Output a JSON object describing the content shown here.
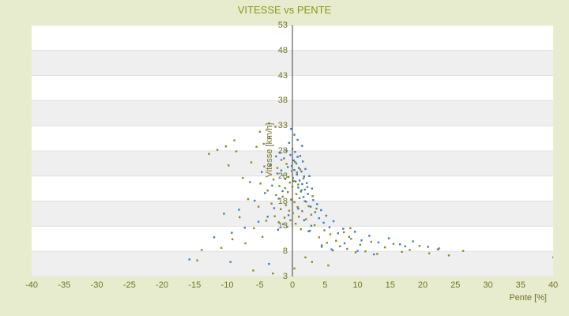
{
  "colors": {
    "background": "#e8ecce",
    "title": "#8c941c",
    "tick": "#72722a",
    "band": "#ffffff",
    "band_alt": "#efefef",
    "grid": "#e0e0e0",
    "axis": "#3f3f3f",
    "series_olive": "#8a8a28",
    "series_blue": "#3e7dc4"
  },
  "chart_data": {
    "type": "scatter",
    "title": "VITESSE vs PENTE",
    "xlabel": "Pente [%]",
    "ylabel": "Vitesse [km/h]",
    "xlim": [
      -40,
      40
    ],
    "ylim": [
      3,
      53
    ],
    "x_ticks": [
      -40,
      -35,
      -30,
      -25,
      -20,
      -15,
      -10,
      -5,
      0,
      5,
      10,
      15,
      20,
      25,
      30,
      35,
      40
    ],
    "y_ticks": [
      3,
      8,
      13,
      18,
      23,
      28,
      33,
      38,
      43,
      48,
      53
    ],
    "grid": "horizontal-bands",
    "legend": "none",
    "marker": "square",
    "marker_size": 2.4,
    "series": [
      {
        "name": "series-1",
        "color": "#8a8a28",
        "points": [
          [
            -3.8,
            20.1
          ],
          [
            -3.2,
            17.5
          ],
          [
            -2.9,
            22.3
          ],
          [
            -2.7,
            15.0
          ],
          [
            -2.5,
            19.2
          ],
          [
            -2.3,
            24.6
          ],
          [
            -2.1,
            13.8
          ],
          [
            -2.0,
            21.0
          ],
          [
            -1.8,
            16.4
          ],
          [
            -1.7,
            26.2
          ],
          [
            -1.5,
            18.9
          ],
          [
            -1.4,
            23.1
          ],
          [
            -1.2,
            14.7
          ],
          [
            -1.1,
            20.6
          ],
          [
            -1.0,
            17.2
          ],
          [
            -0.9,
            25.4
          ],
          [
            -0.8,
            12.9
          ],
          [
            -0.7,
            19.8
          ],
          [
            -0.6,
            22.8
          ],
          [
            -0.5,
            16.1
          ],
          [
            -0.4,
            21.7
          ],
          [
            -0.3,
            14.2
          ],
          [
            -0.2,
            18.3
          ],
          [
            -0.1,
            24.0
          ],
          [
            0.0,
            20.9
          ],
          [
            0.1,
            15.6
          ],
          [
            0.2,
            22.0
          ],
          [
            0.3,
            17.8
          ],
          [
            0.4,
            25.8
          ],
          [
            0.5,
            13.5
          ],
          [
            0.6,
            19.4
          ],
          [
            0.7,
            23.7
          ],
          [
            0.8,
            16.8
          ],
          [
            0.9,
            21.3
          ],
          [
            1.0,
            14.9
          ],
          [
            1.1,
            18.6
          ],
          [
            1.2,
            24.3
          ],
          [
            1.3,
            12.4
          ],
          [
            1.4,
            20.2
          ],
          [
            1.5,
            16.0
          ],
          [
            1.7,
            22.5
          ],
          [
            1.9,
            18.0
          ],
          [
            2.1,
            14.4
          ],
          [
            2.3,
            20.8
          ],
          [
            2.5,
            17.0
          ],
          [
            2.7,
            12.1
          ],
          [
            2.9,
            15.3
          ],
          [
            3.1,
            19.0
          ],
          [
            3.4,
            13.2
          ],
          [
            3.7,
            16.5
          ],
          [
            -14.6,
            6.2
          ],
          [
            -13.9,
            8.3
          ],
          [
            -12.8,
            27.4
          ],
          [
            -11.5,
            28.2
          ],
          [
            -10.9,
            8.7
          ],
          [
            -10.2,
            28.9
          ],
          [
            -9.8,
            25.1
          ],
          [
            -9.2,
            10.4
          ],
          [
            -8.9,
            30.1
          ],
          [
            -8.6,
            27.9
          ],
          [
            -8.1,
            14.8
          ],
          [
            -7.6,
            22.6
          ],
          [
            -7.2,
            9.6
          ],
          [
            -6.8,
            18.4
          ],
          [
            -6.3,
            25.7
          ],
          [
            -6.0,
            4.2
          ],
          [
            -5.9,
            12.6
          ],
          [
            -5.5,
            28.8
          ],
          [
            -5.2,
            16.9
          ],
          [
            -5.0,
            31.8
          ],
          [
            -4.9,
            21.5
          ],
          [
            -4.6,
            10.9
          ],
          [
            -4.4,
            29.4
          ],
          [
            -4.3,
            24.9
          ],
          [
            -4.0,
            14.1
          ],
          [
            -3.6,
            33.5
          ],
          [
            -3.5,
            30.6
          ],
          [
            -3.0,
            3.6
          ],
          [
            -2.6,
            32.8
          ],
          [
            4.1,
            10.8
          ],
          [
            4.5,
            8.9
          ],
          [
            4.9,
            12.2
          ],
          [
            5.3,
            9.7
          ],
          [
            5.8,
            11.4
          ],
          [
            6.2,
            8.2
          ],
          [
            6.7,
            10.1
          ],
          [
            7.3,
            9.0
          ],
          [
            7.9,
            11.8
          ],
          [
            8.4,
            8.5
          ],
          [
            8.9,
            12.6
          ],
          [
            9.0,
            10.5
          ],
          [
            9.7,
            7.8
          ],
          [
            10.4,
            9.3
          ],
          [
            11.2,
            8.0
          ],
          [
            12.1,
            9.9
          ],
          [
            13.0,
            7.5
          ],
          [
            14.2,
            8.8
          ],
          [
            15.5,
            9.5
          ],
          [
            16.8,
            7.9
          ],
          [
            18.0,
            8.3
          ],
          [
            19.5,
            9.1
          ],
          [
            21.0,
            7.6
          ],
          [
            22.5,
            8.6
          ],
          [
            24.0,
            7.2
          ],
          [
            26.2,
            8.1
          ],
          [
            40.0,
            6.8
          ],
          [
            3.0,
            5.9
          ],
          [
            0.3,
            4.6
          ],
          [
            5.5,
            5.2
          ],
          [
            2.0,
            6.8
          ]
        ]
      },
      {
        "name": "series-2",
        "color": "#3e7dc4",
        "points": [
          [
            -0.5,
            29.6
          ],
          [
            -0.3,
            27.2
          ],
          [
            -0.1,
            25.0
          ],
          [
            0.0,
            28.4
          ],
          [
            0.1,
            22.6
          ],
          [
            0.2,
            26.1
          ],
          [
            0.3,
            24.2
          ],
          [
            0.4,
            27.8
          ],
          [
            0.5,
            21.9
          ],
          [
            0.6,
            25.5
          ],
          [
            0.7,
            23.3
          ],
          [
            0.8,
            26.8
          ],
          [
            0.9,
            20.7
          ],
          [
            1.0,
            24.6
          ],
          [
            1.1,
            22.1
          ],
          [
            1.2,
            27.0
          ],
          [
            1.3,
            19.9
          ],
          [
            1.4,
            23.9
          ],
          [
            1.5,
            21.4
          ],
          [
            1.6,
            25.9
          ],
          [
            1.7,
            18.8
          ],
          [
            1.8,
            22.9
          ],
          [
            1.9,
            20.3
          ],
          [
            2.0,
            24.4
          ],
          [
            2.1,
            17.9
          ],
          [
            2.2,
            21.6
          ],
          [
            2.4,
            19.4
          ],
          [
            2.6,
            23.0
          ],
          [
            2.8,
            16.9
          ],
          [
            3.0,
            20.5
          ],
          [
            3.2,
            18.2
          ],
          [
            3.5,
            15.8
          ],
          [
            3.8,
            17.4
          ],
          [
            4.1,
            14.6
          ],
          [
            4.4,
            16.2
          ],
          [
            4.8,
            13.7
          ],
          [
            5.2,
            15.1
          ],
          [
            5.7,
            12.8
          ],
          [
            6.3,
            14.0
          ],
          [
            7.0,
            11.6
          ],
          [
            7.8,
            12.5
          ],
          [
            8.7,
            10.9
          ],
          [
            9.6,
            11.9
          ],
          [
            10.6,
            10.2
          ],
          [
            11.8,
            11.1
          ],
          [
            13.2,
            9.8
          ],
          [
            14.8,
            10.6
          ],
          [
            16.5,
            9.4
          ],
          [
            17.3,
            9.0
          ],
          [
            18.5,
            10.0
          ],
          [
            20.8,
            8.9
          ],
          [
            22.3,
            8.4
          ],
          [
            -0.7,
            24.8
          ],
          [
            -0.9,
            28.0
          ],
          [
            -1.1,
            22.4
          ],
          [
            -1.3,
            26.5
          ],
          [
            -1.5,
            20.0
          ],
          [
            -1.7,
            24.1
          ],
          [
            -1.9,
            27.6
          ],
          [
            -2.1,
            18.5
          ],
          [
            -2.3,
            23.5
          ],
          [
            -2.5,
            26.9
          ],
          [
            -2.8,
            16.6
          ],
          [
            -3.1,
            21.1
          ],
          [
            -3.4,
            25.2
          ],
          [
            -3.8,
            14.9
          ],
          [
            -4.2,
            19.6
          ],
          [
            -4.7,
            23.8
          ],
          [
            -5.2,
            13.9
          ],
          [
            -5.8,
            18.1
          ],
          [
            -6.5,
            21.8
          ],
          [
            -7.3,
            12.7
          ],
          [
            -8.2,
            16.3
          ],
          [
            -9.3,
            11.7
          ],
          [
            -10.5,
            15.5
          ],
          [
            -12.0,
            10.8
          ],
          [
            -15.8,
            6.4
          ],
          [
            -9.5,
            5.9
          ],
          [
            -3.6,
            5.5
          ],
          [
            0.3,
            31.2
          ],
          [
            0.8,
            30.2
          ],
          [
            -0.2,
            32.4
          ],
          [
            1.5,
            29.0
          ],
          [
            2.5,
            12.0
          ],
          [
            4.5,
            9.2
          ],
          [
            6.0,
            8.4
          ],
          [
            8.0,
            9.6
          ],
          [
            10.0,
            8.1
          ],
          [
            12.5,
            7.4
          ],
          [
            0.9,
            16.5
          ],
          [
            1.8,
            14.2
          ],
          [
            2.9,
            13.1
          ],
          [
            -0.6,
            15.2
          ],
          [
            -1.4,
            13.4
          ],
          [
            -2.2,
            12.3
          ]
        ]
      }
    ]
  }
}
